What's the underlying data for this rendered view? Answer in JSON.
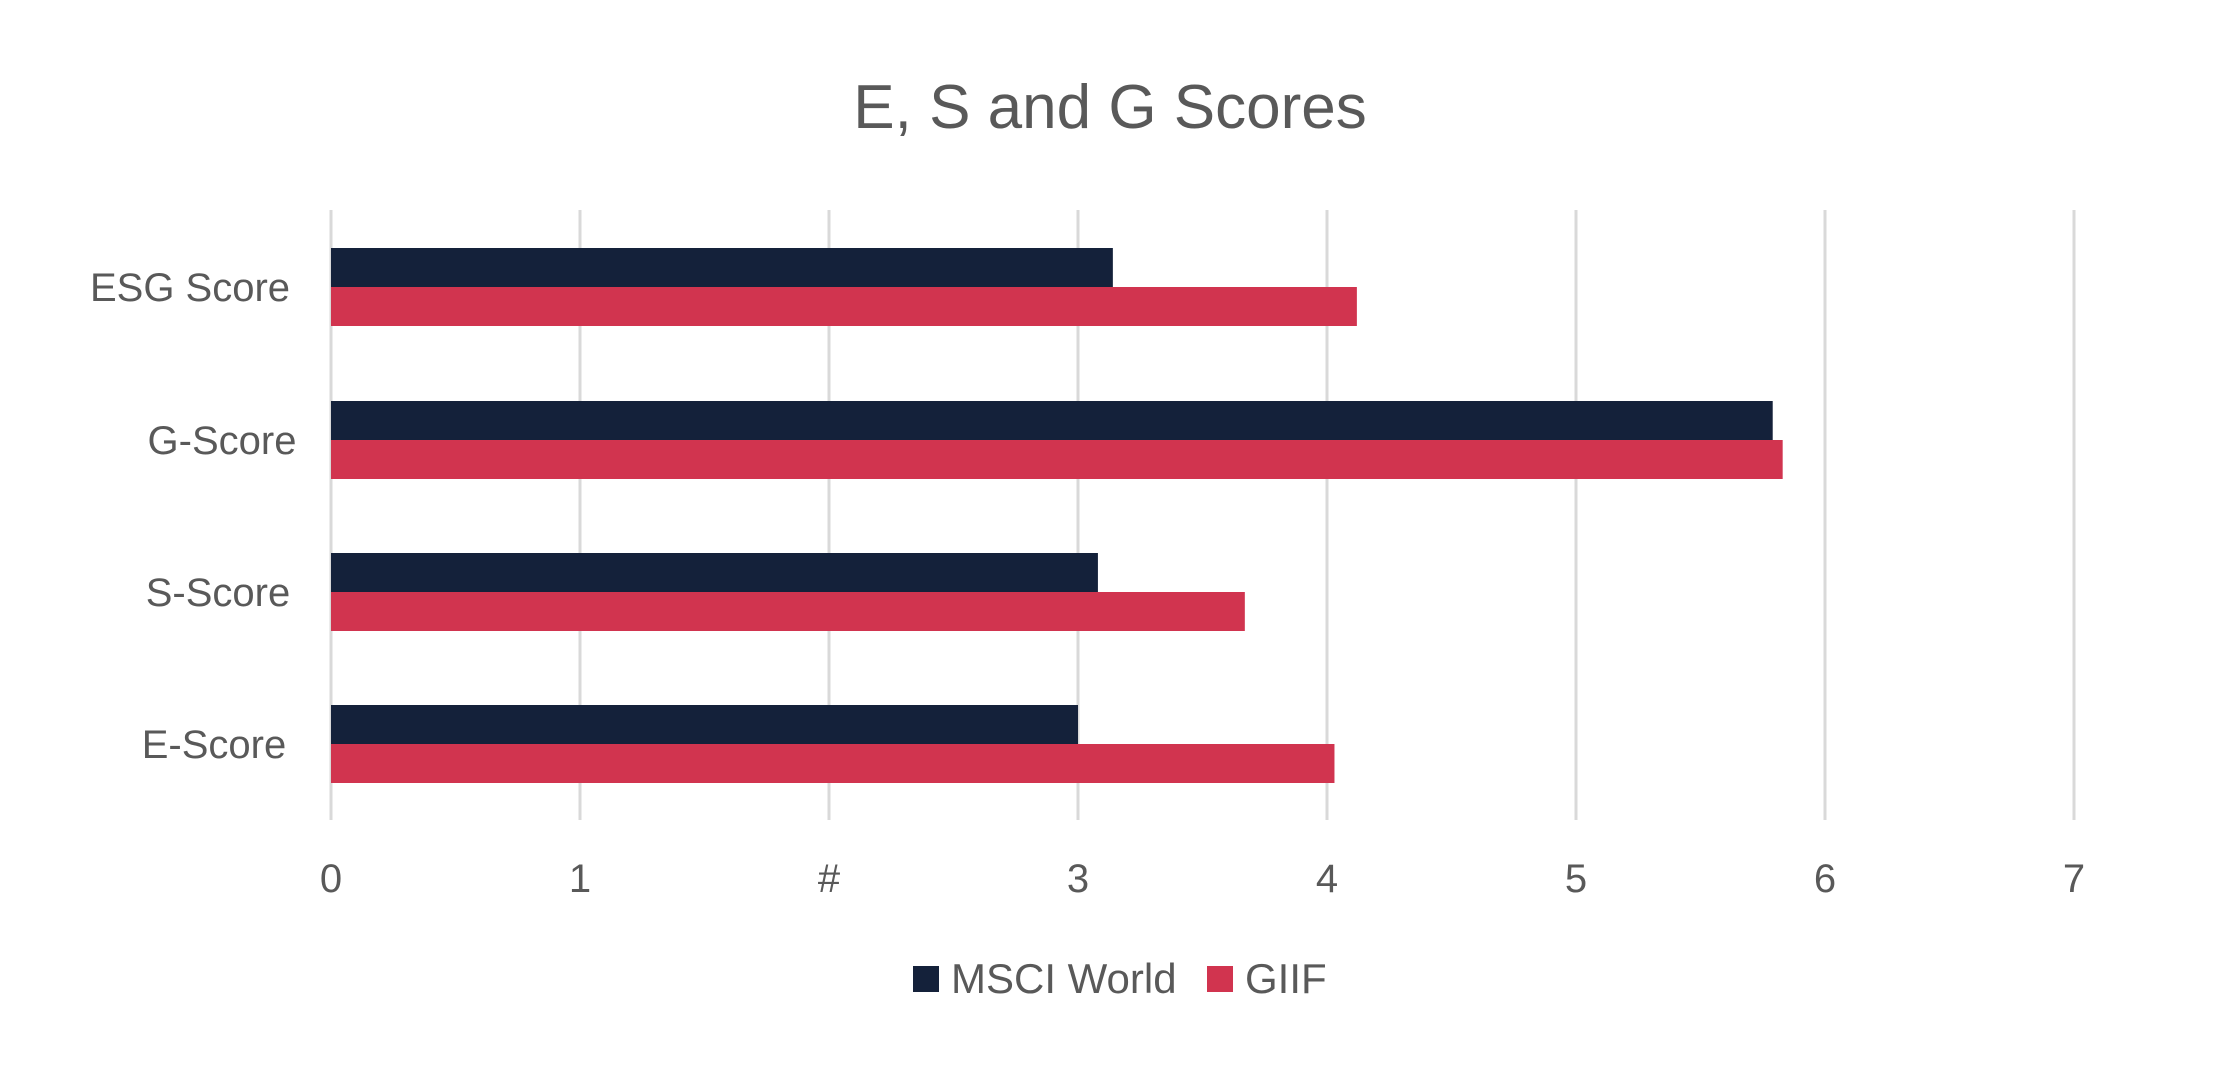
{
  "chart_data": {
    "type": "bar",
    "orientation": "horizontal",
    "title": "E, S and G Scores",
    "categories": [
      "ESG Score",
      "G-Score",
      "S-Score",
      "E-Score"
    ],
    "series": [
      {
        "name": "MSCI World",
        "color": "#14213a",
        "values": [
          3.14,
          5.79,
          3.08,
          3.0
        ]
      },
      {
        "name": "GIIF",
        "color": "#d1344f",
        "values": [
          4.12,
          5.83,
          3.67,
          4.03
        ]
      }
    ],
    "xlim": [
      0,
      7
    ],
    "x_ticks": [
      0,
      1,
      2,
      3,
      4,
      5,
      6,
      7
    ],
    "x_tick_labels": [
      "0",
      "1",
      "#",
      "3",
      "4",
      "5",
      "6",
      "7"
    ],
    "xlabel": "",
    "ylabel": "",
    "grid": true,
    "legend": "bottom-center",
    "gridline_color": "#d9d9d9",
    "text_color": "#595959"
  }
}
